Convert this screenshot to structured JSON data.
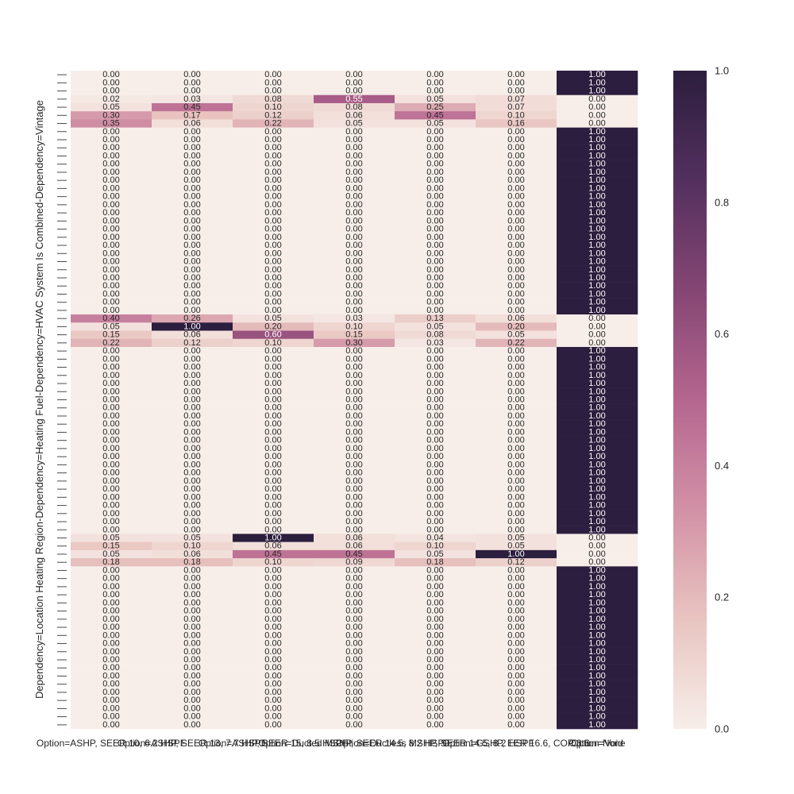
{
  "chart_data": {
    "type": "heatmap",
    "title": "",
    "xlabel": "",
    "ylabel": "Dependency=Location Heating Region-Dependency=Heating Fuel-Dependency=HVAC System Is Combined-Dependency=Vintage",
    "x_categories": [
      "Option=ASHP, SEER 10, 6.2 HSPF",
      "Option=ASHP, SEER 13, 7.7 HSPF",
      "Option=ASHP, SEER 15, 8.5 HSPF",
      "Option=Ducted MSHP, SEER 14.5, 8.2 HSPF",
      "Option=Ductless MSHP, SEER 14.5, 8.2 HSPF",
      "Option=GSHP, EER 16.6, COP 3.6",
      "Option=None"
    ],
    "x_tick_labels_visible": [
      "Option=ASHP, SEER 10, 6.2 HSPF",
      "Option=ASHP, SEER 13, 7.7 HSPF",
      "Option=ASHP, SEER 15, 8.5 HSPF",
      "Option=Ducted MSHP, SEER 14.5, 8.2 HSPF",
      "Option=Ductless MSHP, SEER 14.5, 8.2 HSPF",
      "Option=GSHP, EER 16.6, COP 3.6",
      "Option=None",
      "Option=Void"
    ],
    "rows": 81,
    "highlight_rows": [
      3,
      4,
      5,
      6,
      30,
      31,
      32,
      33,
      57,
      58,
      59,
      60
    ],
    "highlight_values": [
      [
        0.02,
        0.03,
        0.08,
        0.55,
        0.05,
        0.07,
        0.0
      ],
      [
        0.05,
        0.45,
        0.1,
        0.08,
        0.25,
        0.07,
        0.0
      ],
      [
        0.3,
        0.17,
        0.12,
        0.06,
        0.45,
        0.1,
        0.0
      ],
      [
        0.35,
        0.06,
        0.22,
        0.05,
        0.05,
        0.16,
        0.0
      ],
      [
        0.4,
        0.26,
        0.05,
        0.03,
        0.13,
        0.06,
        0.0
      ],
      [
        0.05,
        1.0,
        0.2,
        0.1,
        0.05,
        0.2,
        0.0
      ],
      [
        0.15,
        0.06,
        0.6,
        0.15,
        0.08,
        0.05,
        0.0
      ],
      [
        0.22,
        0.12,
        0.1,
        0.3,
        0.03,
        0.22,
        0.0
      ],
      [
        0.05,
        0.05,
        1.0,
        0.06,
        0.04,
        0.05,
        0.0
      ],
      [
        0.15,
        0.1,
        0.06,
        0.06,
        0.1,
        0.05,
        0.0
      ],
      [
        0.05,
        0.06,
        0.45,
        0.45,
        0.05,
        1.0,
        0.0
      ],
      [
        0.18,
        0.18,
        0.1,
        0.09,
        0.18,
        0.12,
        0.0
      ]
    ],
    "default_values": [
      0.0,
      0.0,
      0.0,
      0.0,
      0.0,
      0.0,
      1.0
    ],
    "colorbar": {
      "min": 0.0,
      "max": 1.0,
      "ticks": [
        "0.0",
        "0.2",
        "0.4",
        "0.6",
        "0.8",
        "1.0"
      ]
    },
    "colormap": [
      "#f7eee9",
      "#e8c4c0",
      "#d291a6",
      "#b5668f",
      "#854674",
      "#53305e",
      "#2c1e3e"
    ],
    "annotation_format": "0.00",
    "grid": false,
    "legend": "colorbar-right"
  }
}
